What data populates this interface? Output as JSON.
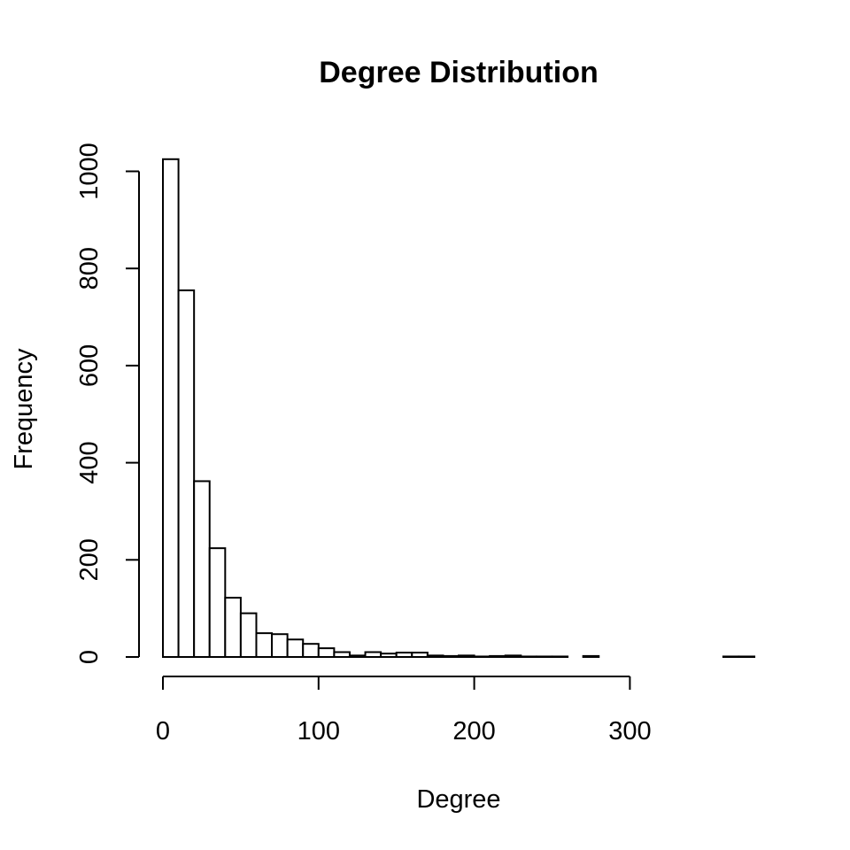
{
  "chart_data": {
    "type": "bar",
    "title": "Degree Distribution",
    "xlabel": "Degree",
    "ylabel": "Frequency",
    "bin_width": 10,
    "bins_start": 0,
    "values": [
      1025,
      755,
      362,
      224,
      122,
      90,
      49,
      47,
      36,
      27,
      18,
      10,
      3,
      10,
      7,
      9,
      9,
      3,
      2,
      3,
      1,
      2,
      3,
      1,
      1,
      1,
      0,
      2,
      0,
      0,
      0,
      0,
      0,
      0,
      0,
      0,
      1,
      1
    ],
    "xlim": [
      0,
      380
    ],
    "ylim": [
      0,
      1025
    ],
    "x_ticks": [
      0,
      100,
      200,
      300
    ],
    "y_ticks": [
      0,
      200,
      400,
      600,
      800,
      1000
    ],
    "x_tick_labels": [
      "0",
      "100",
      "200",
      "300"
    ],
    "y_tick_labels": [
      "0",
      "200",
      "400",
      "600",
      "800",
      "1000"
    ],
    "grid": false
  }
}
